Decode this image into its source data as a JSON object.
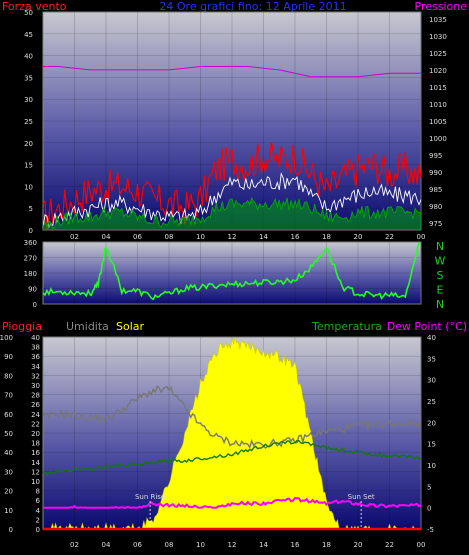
{
  "header": {
    "left_label": "Forza vento",
    "center_label": "24 Ore grafici fino: 12 Aprile 2011",
    "right_label": "Pressione"
  },
  "direction_labels": [
    "N",
    "W",
    "S",
    "E",
    "N"
  ],
  "sun_labels": {
    "rise": "Sun Rise",
    "set": "Sun Set"
  },
  "bottom_header": {
    "rain": "Pioggia",
    "humidity": "Umidita",
    "solar": "Solar",
    "temperature": "Temperatura",
    "dewpoint": "Dew Point (°C)"
  },
  "colors": {
    "wind_gust": "#ff0000",
    "wind_avg": "#ffffff",
    "wind_speed": "#00aa00",
    "pressure": "#cc00cc",
    "direction": "#22ff22",
    "humidity": "#777777",
    "solar": "#ffff00",
    "temperature": "#117711",
    "dewpoint": "#ff00ff",
    "rain": "#ff0000"
  },
  "chart_data": [
    {
      "type": "line",
      "name": "wind-pressure",
      "x_ticks": [
        "02",
        "04",
        "06",
        "08",
        "10",
        "12",
        "14",
        "16",
        "18",
        "20",
        "22",
        "00"
      ],
      "left_axis": {
        "label": "Forza vento",
        "ticks": [
          0,
          5,
          10,
          15,
          20,
          25,
          30,
          35,
          40,
          45,
          50
        ],
        "ylim": [
          0,
          50
        ]
      },
      "right_axis": {
        "label": "Pressione",
        "ticks": [
          975,
          980,
          985,
          990,
          995,
          1000,
          1005,
          1010,
          1015,
          1020,
          1025,
          1030,
          1035
        ],
        "ylim": [
          973,
          1037
        ]
      },
      "hours": [
        0,
        1,
        2,
        3,
        4,
        5,
        6,
        7,
        8,
        9,
        10,
        11,
        12,
        13,
        14,
        15,
        16,
        17,
        18,
        19,
        20,
        21,
        22,
        23,
        24
      ],
      "series": [
        {
          "key": "gust",
          "color": "#ff0000",
          "values": [
            3,
            5,
            7,
            9,
            10,
            10,
            9,
            7,
            6,
            5,
            7,
            14,
            16,
            15,
            17,
            16,
            17,
            13,
            9,
            12,
            14,
            15,
            13,
            14,
            12
          ]
        },
        {
          "key": "average",
          "color": "#ffffff",
          "values": [
            2,
            3,
            4,
            5,
            6,
            6,
            5,
            4,
            3,
            3,
            4,
            8,
            11,
            10,
            11,
            11,
            12,
            8,
            5,
            7,
            8,
            9,
            8,
            8,
            7
          ]
        },
        {
          "key": "speed",
          "color": "#00aa00",
          "values": [
            1,
            2,
            3,
            3,
            4,
            4,
            3,
            2,
            2,
            2,
            3,
            5,
            6,
            6,
            6,
            6,
            6,
            5,
            3,
            3,
            4,
            4,
            4,
            4,
            4
          ]
        },
        {
          "key": "pressure",
          "color": "#cc00cc",
          "axis": "right",
          "values": [
            1021,
            1021,
            1020.5,
            1020,
            1020,
            1020,
            1020,
            1020,
            1020,
            1020.5,
            1021,
            1021,
            1021,
            1021,
            1020.5,
            1020,
            1019,
            1018,
            1018,
            1018,
            1018,
            1018.5,
            1019,
            1019,
            1019
          ]
        }
      ]
    },
    {
      "type": "line",
      "name": "wind-direction",
      "y_ticks": [
        0,
        90,
        180,
        270,
        360
      ],
      "ylim": [
        0,
        360
      ],
      "hours": [
        0,
        1,
        2,
        3,
        3.5,
        4,
        5,
        6,
        7,
        8,
        9,
        10,
        11,
        12,
        13,
        14,
        15,
        16,
        17,
        18,
        19,
        20,
        21,
        22,
        23,
        23.9
      ],
      "values": [
        70,
        70,
        70,
        60,
        110,
        340,
        80,
        75,
        40,
        60,
        90,
        95,
        110,
        115,
        120,
        125,
        130,
        140,
        210,
        330,
        100,
        60,
        50,
        50,
        40,
        360
      ],
      "color": "#22ff22"
    },
    {
      "type": "line",
      "name": "solar-temperature",
      "left_axis_rain": {
        "label": "Pioggia",
        "ticks": [
          0,
          2,
          4,
          6,
          8,
          10,
          12,
          14,
          16,
          18,
          20,
          22,
          24,
          26,
          28,
          30,
          32,
          34,
          36,
          38,
          40
        ],
        "ylim": [
          0,
          40
        ]
      },
      "left_axis_humidity": {
        "label": "Umidita",
        "ticks": [
          0,
          10,
          20,
          30,
          40,
          50,
          60,
          70,
          80,
          90,
          100
        ],
        "ylim": [
          0,
          100
        ]
      },
      "right_axis": {
        "label": "Dew Point (°C)",
        "ticks": [
          -5,
          0,
          5,
          10,
          15,
          20,
          25,
          30,
          35,
          40
        ],
        "ylim": [
          -5,
          40
        ]
      },
      "hours": [
        0,
        1,
        2,
        3,
        4,
        5,
        6,
        7,
        8,
        9,
        10,
        11,
        12,
        13,
        14,
        15,
        16,
        17,
        18,
        19,
        20,
        21,
        22,
        23,
        24
      ],
      "series": [
        {
          "key": "humidity",
          "color": "#777777",
          "values": [
            58,
            60,
            59,
            58,
            57,
            62,
            68,
            72,
            73,
            63,
            54,
            48,
            45,
            44,
            44,
            45,
            46,
            49,
            51,
            52,
            54,
            54,
            55,
            55,
            55
          ]
        },
        {
          "key": "solar",
          "color": "#ffff00",
          "values": [
            0,
            0,
            0,
            0,
            0,
            0,
            0,
            2,
            10,
            20,
            30,
            37,
            39,
            38,
            37,
            36,
            34,
            20,
            5,
            0,
            0,
            0,
            0,
            0,
            0
          ]
        },
        {
          "key": "temperature",
          "color": "#117711",
          "axis": "right",
          "values": [
            8,
            8.5,
            9,
            9,
            9.5,
            10,
            10,
            10.5,
            11,
            11,
            11.5,
            12,
            12.5,
            13.5,
            14.5,
            15,
            15.5,
            15,
            14,
            13.5,
            13,
            12.5,
            12,
            12,
            11.5
          ]
        },
        {
          "key": "dewpoint",
          "color": "#ff00ff",
          "axis": "right",
          "values": [
            -0.5,
            -0.5,
            0,
            -0.5,
            -0.5,
            0,
            0,
            1,
            0.5,
            0.5,
            0,
            0,
            1,
            1,
            1,
            1.5,
            2,
            1.5,
            1,
            1.5,
            1,
            0.5,
            0.5,
            0.5,
            0.5
          ]
        },
        {
          "key": "rain",
          "color": "#ff0000",
          "values": [
            0,
            0,
            0,
            0,
            0,
            0,
            0,
            0,
            0,
            0,
            0,
            0,
            0,
            0,
            0,
            0,
            0,
            0,
            0,
            0,
            0,
            0,
            0,
            0,
            0
          ]
        }
      ],
      "sun_rise_hour": 6.8,
      "sun_set_hour": 20.2,
      "x_ticks": [
        "02",
        "04",
        "06",
        "08",
        "10",
        "12",
        "14",
        "16",
        "18",
        "20",
        "22",
        "00"
      ]
    }
  ]
}
